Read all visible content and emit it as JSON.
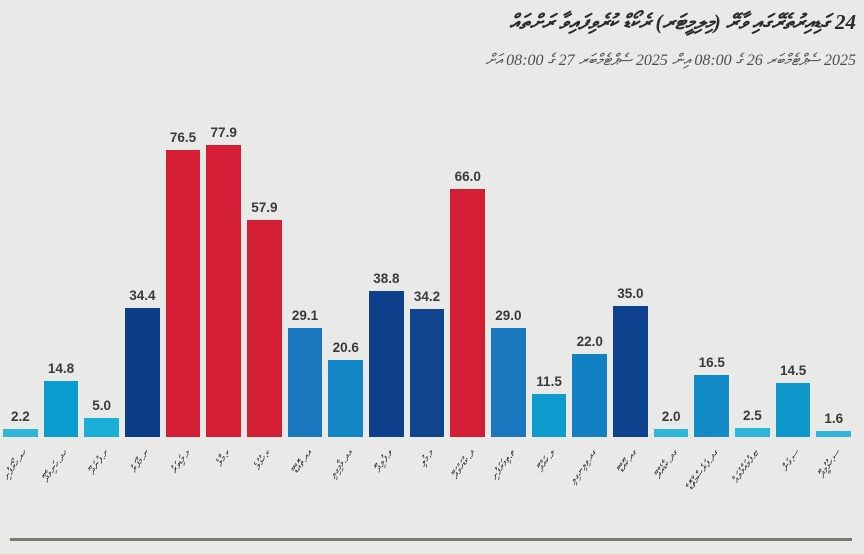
{
  "title": "24 ގަޑިއިރުތެރޭގައި ވާރޭ (މިލިމީޓަރ) ރެކޯޑް ކުރެވިފައިވާ ރަށްތައް",
  "subtitle": "2025 ސެޕްޓެމްބަރ 26 ގެ 08:00 އިން 2025 ސެޕްޓެމްބަރ 27 ގެ 08:00 އަށް",
  "chart_data": {
    "type": "bar",
    "title": "24 ގަޑިއިރުތެރޭގައި ވާރޭ (މިލިމީޓަރ) ރެކޯޑް ކުރެވިފައިވާ ރަށްތައް",
    "subtitle": "2025 ސެޕްޓެމްބަރ 26 ގެ 08:00 އިން 2025 ސެޕްޓެމްބަރ 27 ގެ 08:00 އަށް",
    "categories": [
      "ހއ.ހޯރަފުށި",
      "ހދ.ހަނިމާދޫ",
      "ށ.ފުނަދޫ",
      "ނ.މާފަރު",
      "ޅ.މަޑިވަރު",
      "ކ.މާލެ",
      "ކ.ހުޅުލެ",
      "އއ.ތޮއްޑޫ",
      "އދ.މާމިގިލި",
      "ވ.ފުލިދޫ",
      "މ.މުލި",
      "ދ.ކުޑަހުވަދޫ",
      "ތ.ތިމަރަފުށި",
      "ލ.ކައްދޫ",
      "ގއ.ވިލިނގިލި",
      "ގއ.ކޫއްޑޫ",
      "ގދ.ކާޑެއްދޫ",
      "ގދ.ފަރެސްމާތޮޑާ",
      "ޏ.ފުވައްމުލައް",
      "ސ.ގަން",
      "ސ.ހުޅުމީދޫ"
    ],
    "values": [
      2.2,
      14.8,
      5.0,
      34.4,
      76.5,
      77.9,
      57.9,
      29.1,
      20.6,
      38.8,
      34.2,
      66.0,
      29.0,
      11.5,
      22.0,
      35.0,
      2.0,
      16.5,
      2.5,
      14.5,
      1.6
    ],
    "value_labels": [
      "2.2",
      "14.8",
      "5.0",
      "34.4",
      "76.5",
      "77.9",
      "57.9",
      "29.1",
      "20.6",
      "38.8",
      "34.2",
      "66.0",
      "29.0",
      "11.5",
      "22.0",
      "35.0",
      "2.0",
      "16.5",
      "2.5",
      "14.5",
      "1.6"
    ],
    "bar_colors": [
      "#2eb7db",
      "#0a9ccd",
      "#19afd7",
      "#0c3e88",
      "#d41e35",
      "#d41e35",
      "#d41e35",
      "#1877bd",
      "#1285c5",
      "#0d3f8a",
      "#10448c",
      "#d41e35",
      "#1877bd",
      "#0d9ccd",
      "#1181c3",
      "#0e428c",
      "#2eb7db",
      "#108bc7",
      "#2eb7db",
      "#0d97ca",
      "#2eb7db"
    ],
    "ylim": [
      0,
      80
    ],
    "grid": false,
    "legend": "none",
    "axis_lines": "none",
    "value_labels_shown": true,
    "xlabel": "",
    "ylabel": ""
  },
  "palette": {
    "background": "#e9e9e7",
    "red_high": "#d41e35",
    "navy_mid_high": "#0d3f8a",
    "blue_mid": "#1877bd",
    "cyan_low_mid": "#0d9ccd",
    "cyan_light_low": "#2eb7db",
    "value_label_text": "#3a3a3a",
    "title_text": "#2b2b2b",
    "subtitle_text": "#4e4e4e",
    "bottom_rule": "#7a7a6e"
  }
}
